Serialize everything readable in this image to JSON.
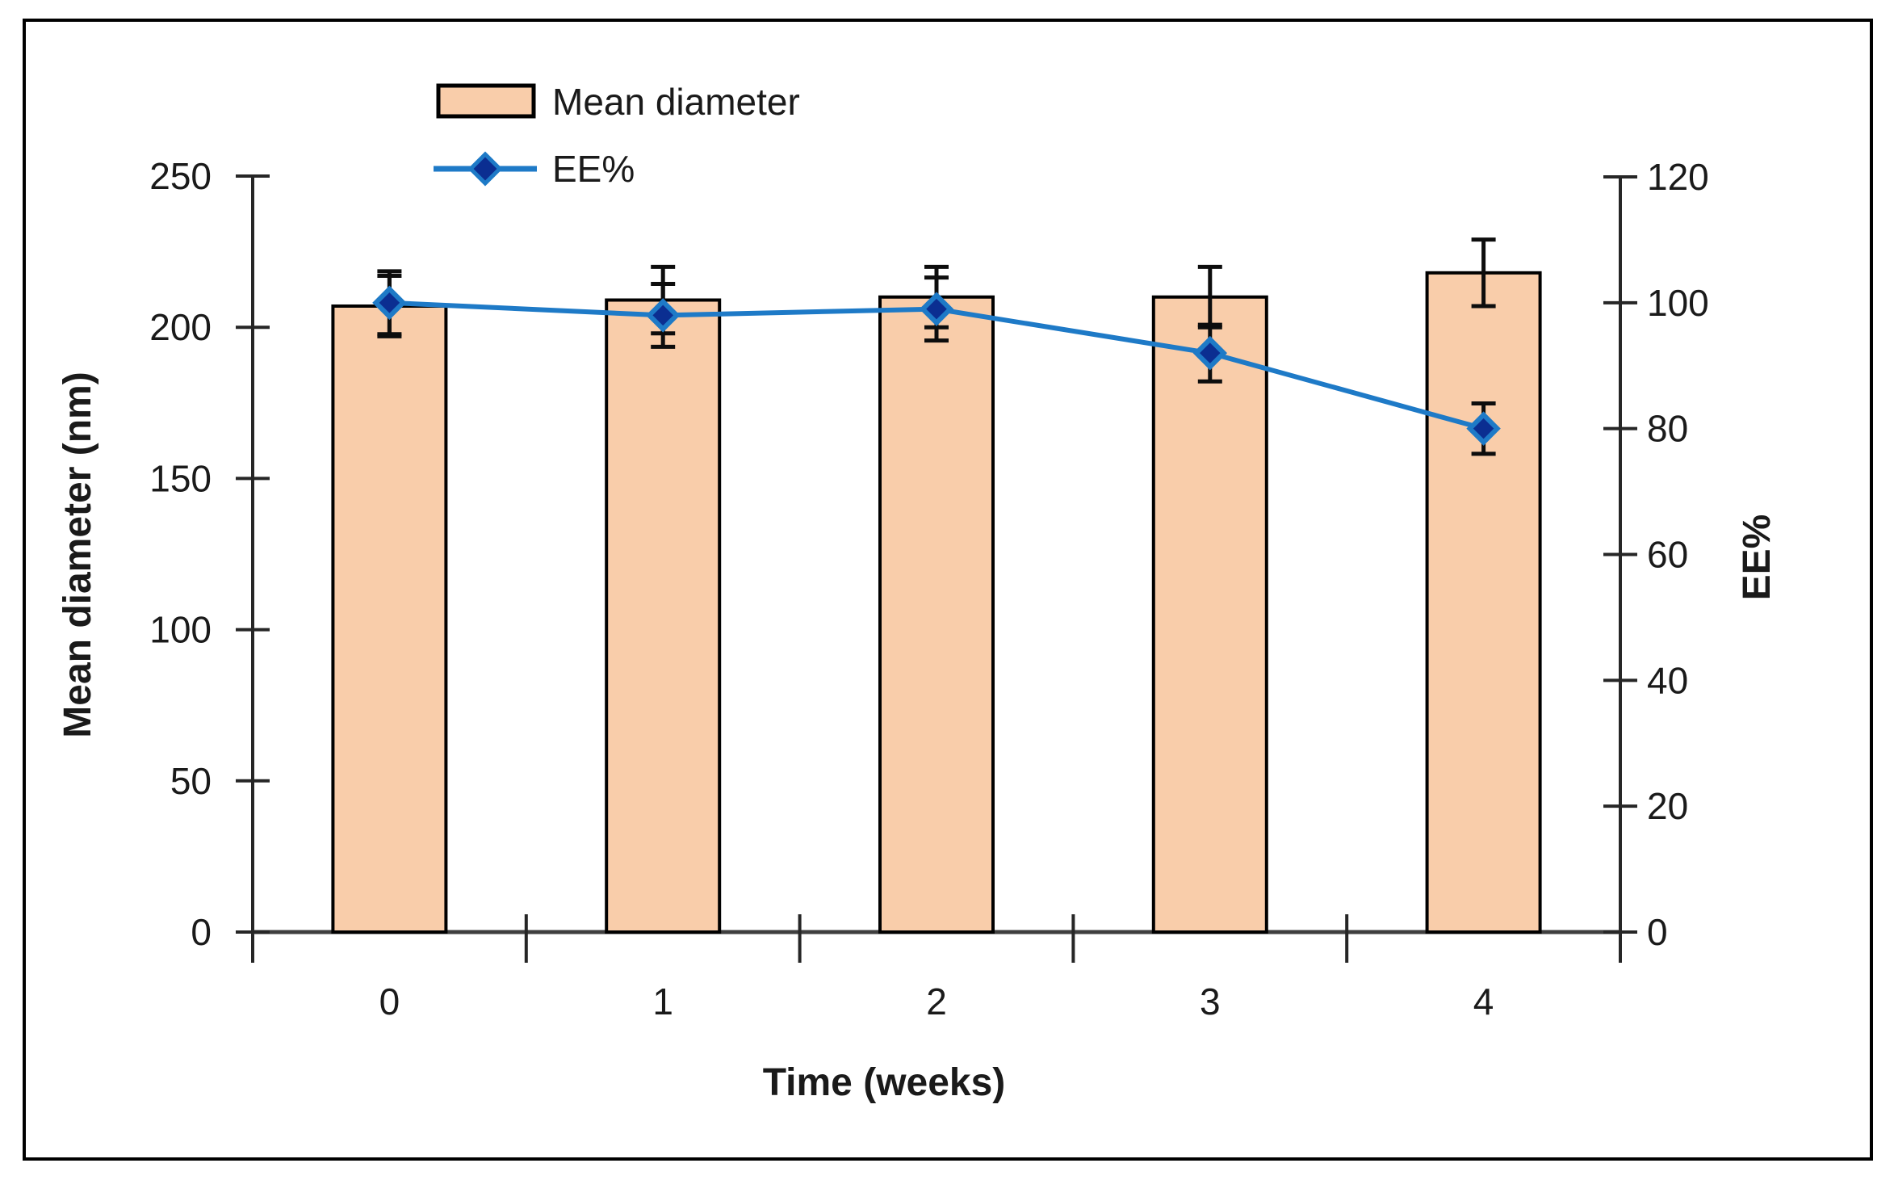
{
  "legend": {
    "bar_label": "Mean diameter",
    "line_label": "EE%"
  },
  "axes": {
    "y_left": {
      "title": "Mean diameter (nm)",
      "min": 0,
      "max": 250,
      "step": 50,
      "tick_labels": [
        "0",
        "50",
        "100",
        "150",
        "200",
        "250"
      ]
    },
    "y_right": {
      "title": "EE%",
      "min": 0,
      "max": 120,
      "step": 20,
      "tick_labels": [
        "0",
        "20",
        "40",
        "60",
        "80",
        "100",
        "120"
      ]
    },
    "x": {
      "title": "Time (weeks)",
      "tick_labels": [
        "0",
        "1",
        "2",
        "3",
        "4"
      ]
    }
  },
  "chart_data": {
    "type": "combo",
    "categories": [
      0,
      1,
      2,
      3,
      4
    ],
    "xlabel": "Time (weeks)",
    "ylabel_left": "Mean diameter (nm)",
    "ylabel_right": "EE%",
    "ylim_left": [
      0,
      250
    ],
    "ylim_right": [
      0,
      120
    ],
    "grid": false,
    "legend_position": "top-left",
    "series": [
      {
        "name": "Mean diameter",
        "type": "bar",
        "axis": "left",
        "values": [
          207,
          209,
          210,
          210,
          218
        ],
        "error_bars": [
          10,
          11,
          10,
          10,
          11
        ]
      },
      {
        "name": "EE%",
        "type": "line",
        "axis": "right",
        "marker": "diamond",
        "values": [
          100,
          98,
          99,
          92,
          80
        ],
        "error_bars": [
          5,
          5,
          5,
          4.5,
          4
        ]
      }
    ]
  },
  "colors": {
    "bar_fill": "#F9CDAA",
    "bar_border": "#000000",
    "line_blue": "#1E7AC7",
    "marker_navy": "#0B2E91",
    "error_bar": "#0d0d0d",
    "axis": "#262626",
    "baseline": "#3f3f3f",
    "text": "#1a1a1a",
    "frame_border": "#000000"
  }
}
